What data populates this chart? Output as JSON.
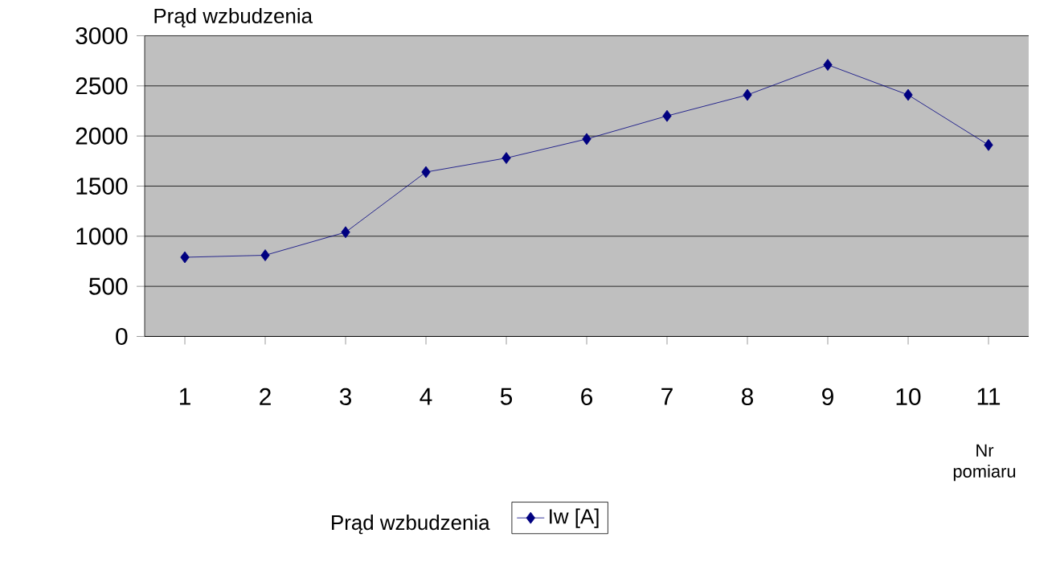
{
  "chart_data": {
    "type": "line",
    "ylabel": "Prąd wzbudzenia",
    "xlabel": "Nr pomiaru",
    "legend_title": "Prąd wzbudzenia",
    "categories": [
      "1",
      "2",
      "3",
      "4",
      "5",
      "6",
      "7",
      "8",
      "9",
      "10",
      "11"
    ],
    "series": [
      {
        "name": "Iw [A]",
        "color": "#000080",
        "values": [
          790,
          810,
          1040,
          1640,
          1780,
          1970,
          2200,
          2410,
          2710,
          2410,
          1910
        ]
      }
    ],
    "ylim": [
      0,
      3000
    ],
    "yticks": [
      0,
      500,
      1000,
      1500,
      2000,
      2500,
      3000
    ],
    "grid": "y",
    "legend": "bottom",
    "marker": "diamond",
    "line_style": "solid"
  }
}
